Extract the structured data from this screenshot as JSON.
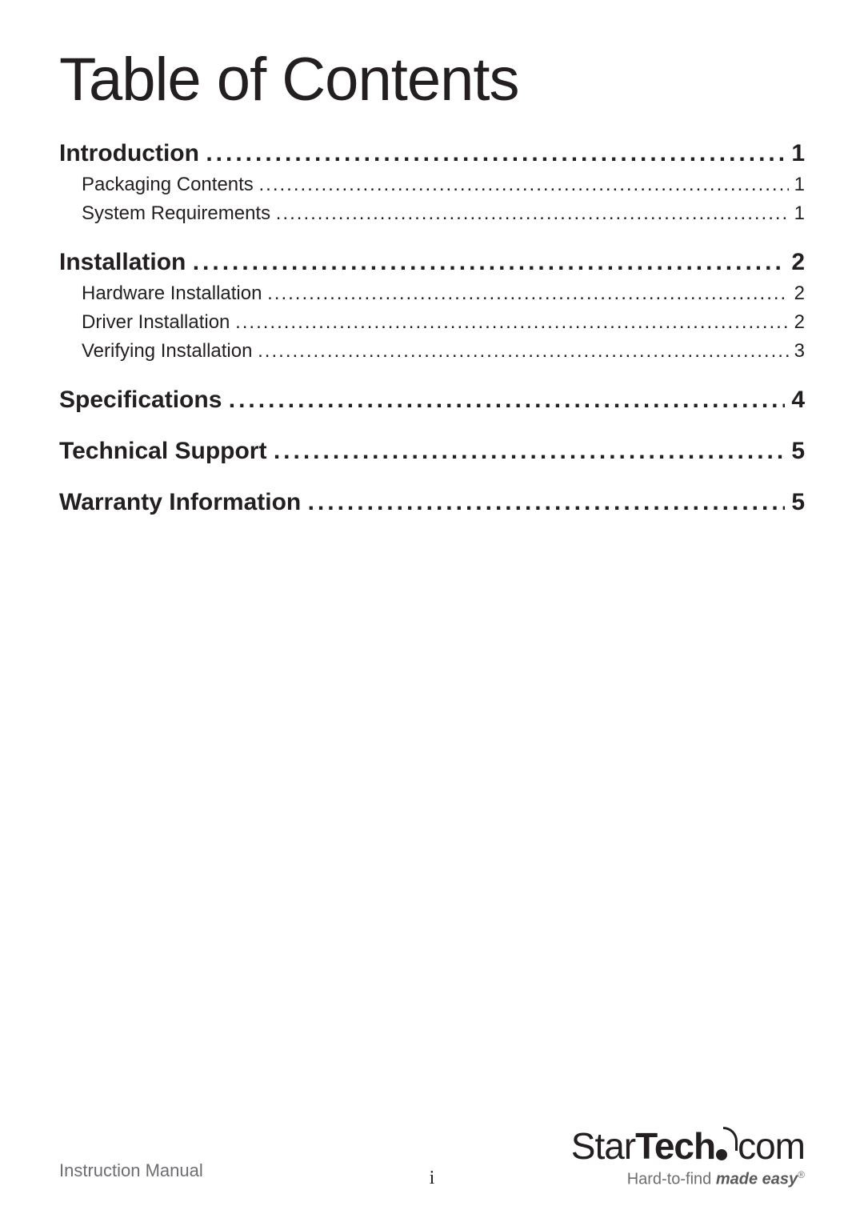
{
  "title": "Table of Contents",
  "toc": {
    "sections": [
      {
        "label": "Introduction",
        "page": "1",
        "subs": [
          {
            "label": "Packaging Contents",
            "page": "1"
          },
          {
            "label": "System Requirements",
            "page": "1"
          }
        ]
      },
      {
        "label": "Installation",
        "page": "2",
        "subs": [
          {
            "label": "Hardware Installation",
            "page": "2"
          },
          {
            "label": "Driver Installation",
            "page": "2"
          },
          {
            "label": "Verifying Installation",
            "page": "3"
          }
        ]
      },
      {
        "label": "Specifications",
        "page": "4",
        "subs": []
      },
      {
        "label": "Technical Support",
        "page": "5",
        "subs": []
      },
      {
        "label": "Warranty Information",
        "page": "5",
        "subs": []
      }
    ]
  },
  "footer": {
    "left": "Instruction Manual",
    "pageNumber": "i",
    "logo": {
      "part1": "Star",
      "part2": "Tech",
      "part3": "com"
    },
    "tagline": {
      "pre": "Hard-to-find ",
      "em": "made easy",
      "reg": "®"
    }
  },
  "colors": {
    "text": "#231f20",
    "muted": "#6d6e71",
    "background": "#ffffff"
  },
  "typography": {
    "title_fontsize": 76,
    "section_fontsize": 30,
    "sub_fontsize": 24,
    "footer_fontsize": 22,
    "logo_fontsize": 46,
    "tagline_fontsize": 20
  }
}
